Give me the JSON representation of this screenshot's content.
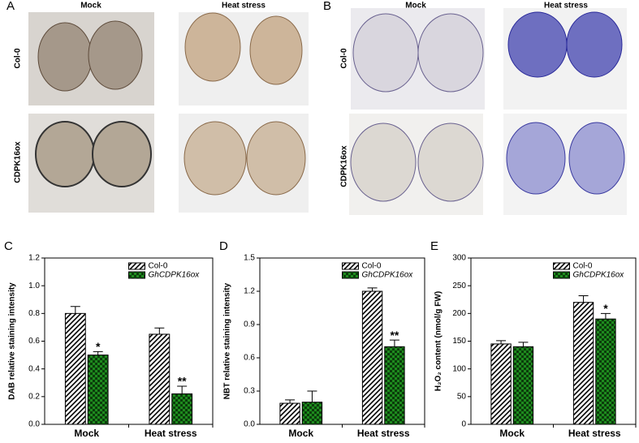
{
  "photos": {
    "A": {
      "label": "A",
      "columns": [
        "Mock",
        "Heat stress"
      ],
      "rows": [
        "Col-0",
        "CDPK16ox"
      ]
    },
    "B": {
      "label": "B",
      "columns": [
        "Mock",
        "Heat stress"
      ],
      "rows": [
        "Col-0",
        "CDPK16ox"
      ]
    }
  },
  "chart_data": [
    {
      "type": "bar",
      "panel": "C",
      "ylabel": "DAB relative staining intensity",
      "categories": [
        "Mock",
        "Heat stress"
      ],
      "ylim": [
        0,
        1.2
      ],
      "yticks": [
        {
          "value": 0,
          "label": "0.0"
        },
        0.2,
        0.4,
        0.6,
        0.8,
        {
          "value": 1,
          "label": "1.0"
        },
        1.2
      ],
      "series": [
        {
          "name": "Col-0",
          "color": "#000000",
          "fill": "hatch",
          "values": [
            0.8,
            0.65
          ],
          "errors": [
            0.05,
            0.045
          ]
        },
        {
          "name": "GhCDPK16ox",
          "color": "#1e8a1e",
          "fill": "check",
          "values": [
            0.5,
            0.22
          ],
          "errors": [
            0.025,
            0.055
          ],
          "significance": [
            "*",
            "**"
          ]
        }
      ]
    },
    {
      "type": "bar",
      "panel": "D",
      "ylabel": "NBT relative staining intensity",
      "categories": [
        "Mock",
        "Heat stress"
      ],
      "ylim": [
        0,
        1.5
      ],
      "yticks": [
        {
          "value": 0,
          "label": "0.0"
        },
        0.3,
        0.6,
        0.9,
        1.2,
        1.5
      ],
      "series": [
        {
          "name": "Col-0",
          "color": "#000000",
          "fill": "hatch",
          "values": [
            0.19,
            1.2
          ],
          "errors": [
            0.03,
            0.03
          ]
        },
        {
          "name": "GhCDPK16ox",
          "color": "#1e8a1e",
          "fill": "check",
          "values": [
            0.2,
            0.7
          ],
          "errors": [
            0.1,
            0.06
          ],
          "significance": [
            null,
            "**"
          ]
        }
      ]
    },
    {
      "type": "bar",
      "panel": "E",
      "ylabel": "H₂O₂ content (nmol/g FW)",
      "categories": [
        "Mock",
        "Heat stress"
      ],
      "ylim": [
        0,
        300
      ],
      "yticks": [
        0,
        50,
        100,
        150,
        200,
        250,
        300
      ],
      "series": [
        {
          "name": "Col-0",
          "color": "#000000",
          "fill": "hatch",
          "values": [
            145,
            220
          ],
          "errors": [
            6,
            12
          ]
        },
        {
          "name": "GhCDPK16ox",
          "color": "#1e8a1e",
          "fill": "check",
          "values": [
            140,
            190
          ],
          "errors": [
            8,
            10
          ],
          "significance": [
            null,
            "*"
          ]
        }
      ]
    }
  ]
}
